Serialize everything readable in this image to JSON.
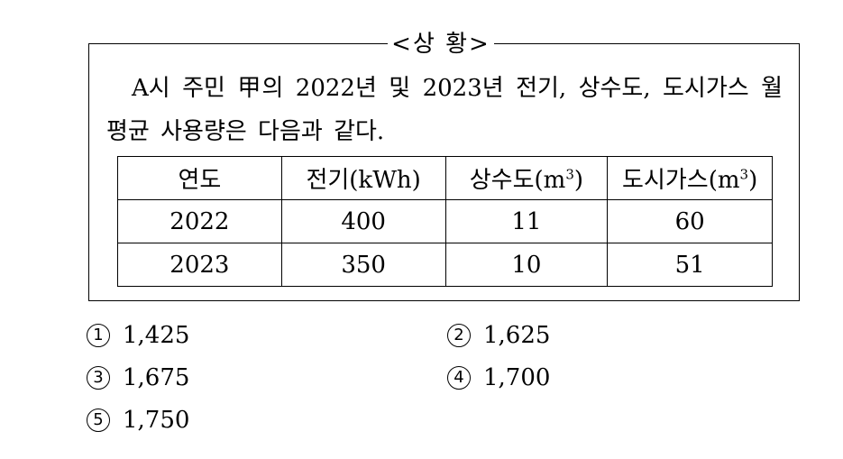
{
  "situation": {
    "title": "<상  황>",
    "paragraph": "A시 주민 甲의 2022년 및 2023년 전기, 상수도, 도시가스 월평균 사용량은 다음과 같다.",
    "table": {
      "headers": {
        "year": "연도",
        "electricity": "전기(kWh)",
        "water_base": "상수도(m",
        "gas_base": "도시가스(m",
        "sup": "3",
        "close": ")"
      },
      "rows": [
        {
          "year": "2022",
          "electricity": "400",
          "water": "11",
          "gas": "60"
        },
        {
          "year": "2023",
          "electricity": "350",
          "water": "10",
          "gas": "51"
        }
      ]
    }
  },
  "choices": [
    {
      "marker": "1",
      "value": "1,425"
    },
    {
      "marker": "2",
      "value": "1,625"
    },
    {
      "marker": "3",
      "value": "1,675"
    },
    {
      "marker": "4",
      "value": "1,700"
    },
    {
      "marker": "5",
      "value": "1,750"
    }
  ]
}
